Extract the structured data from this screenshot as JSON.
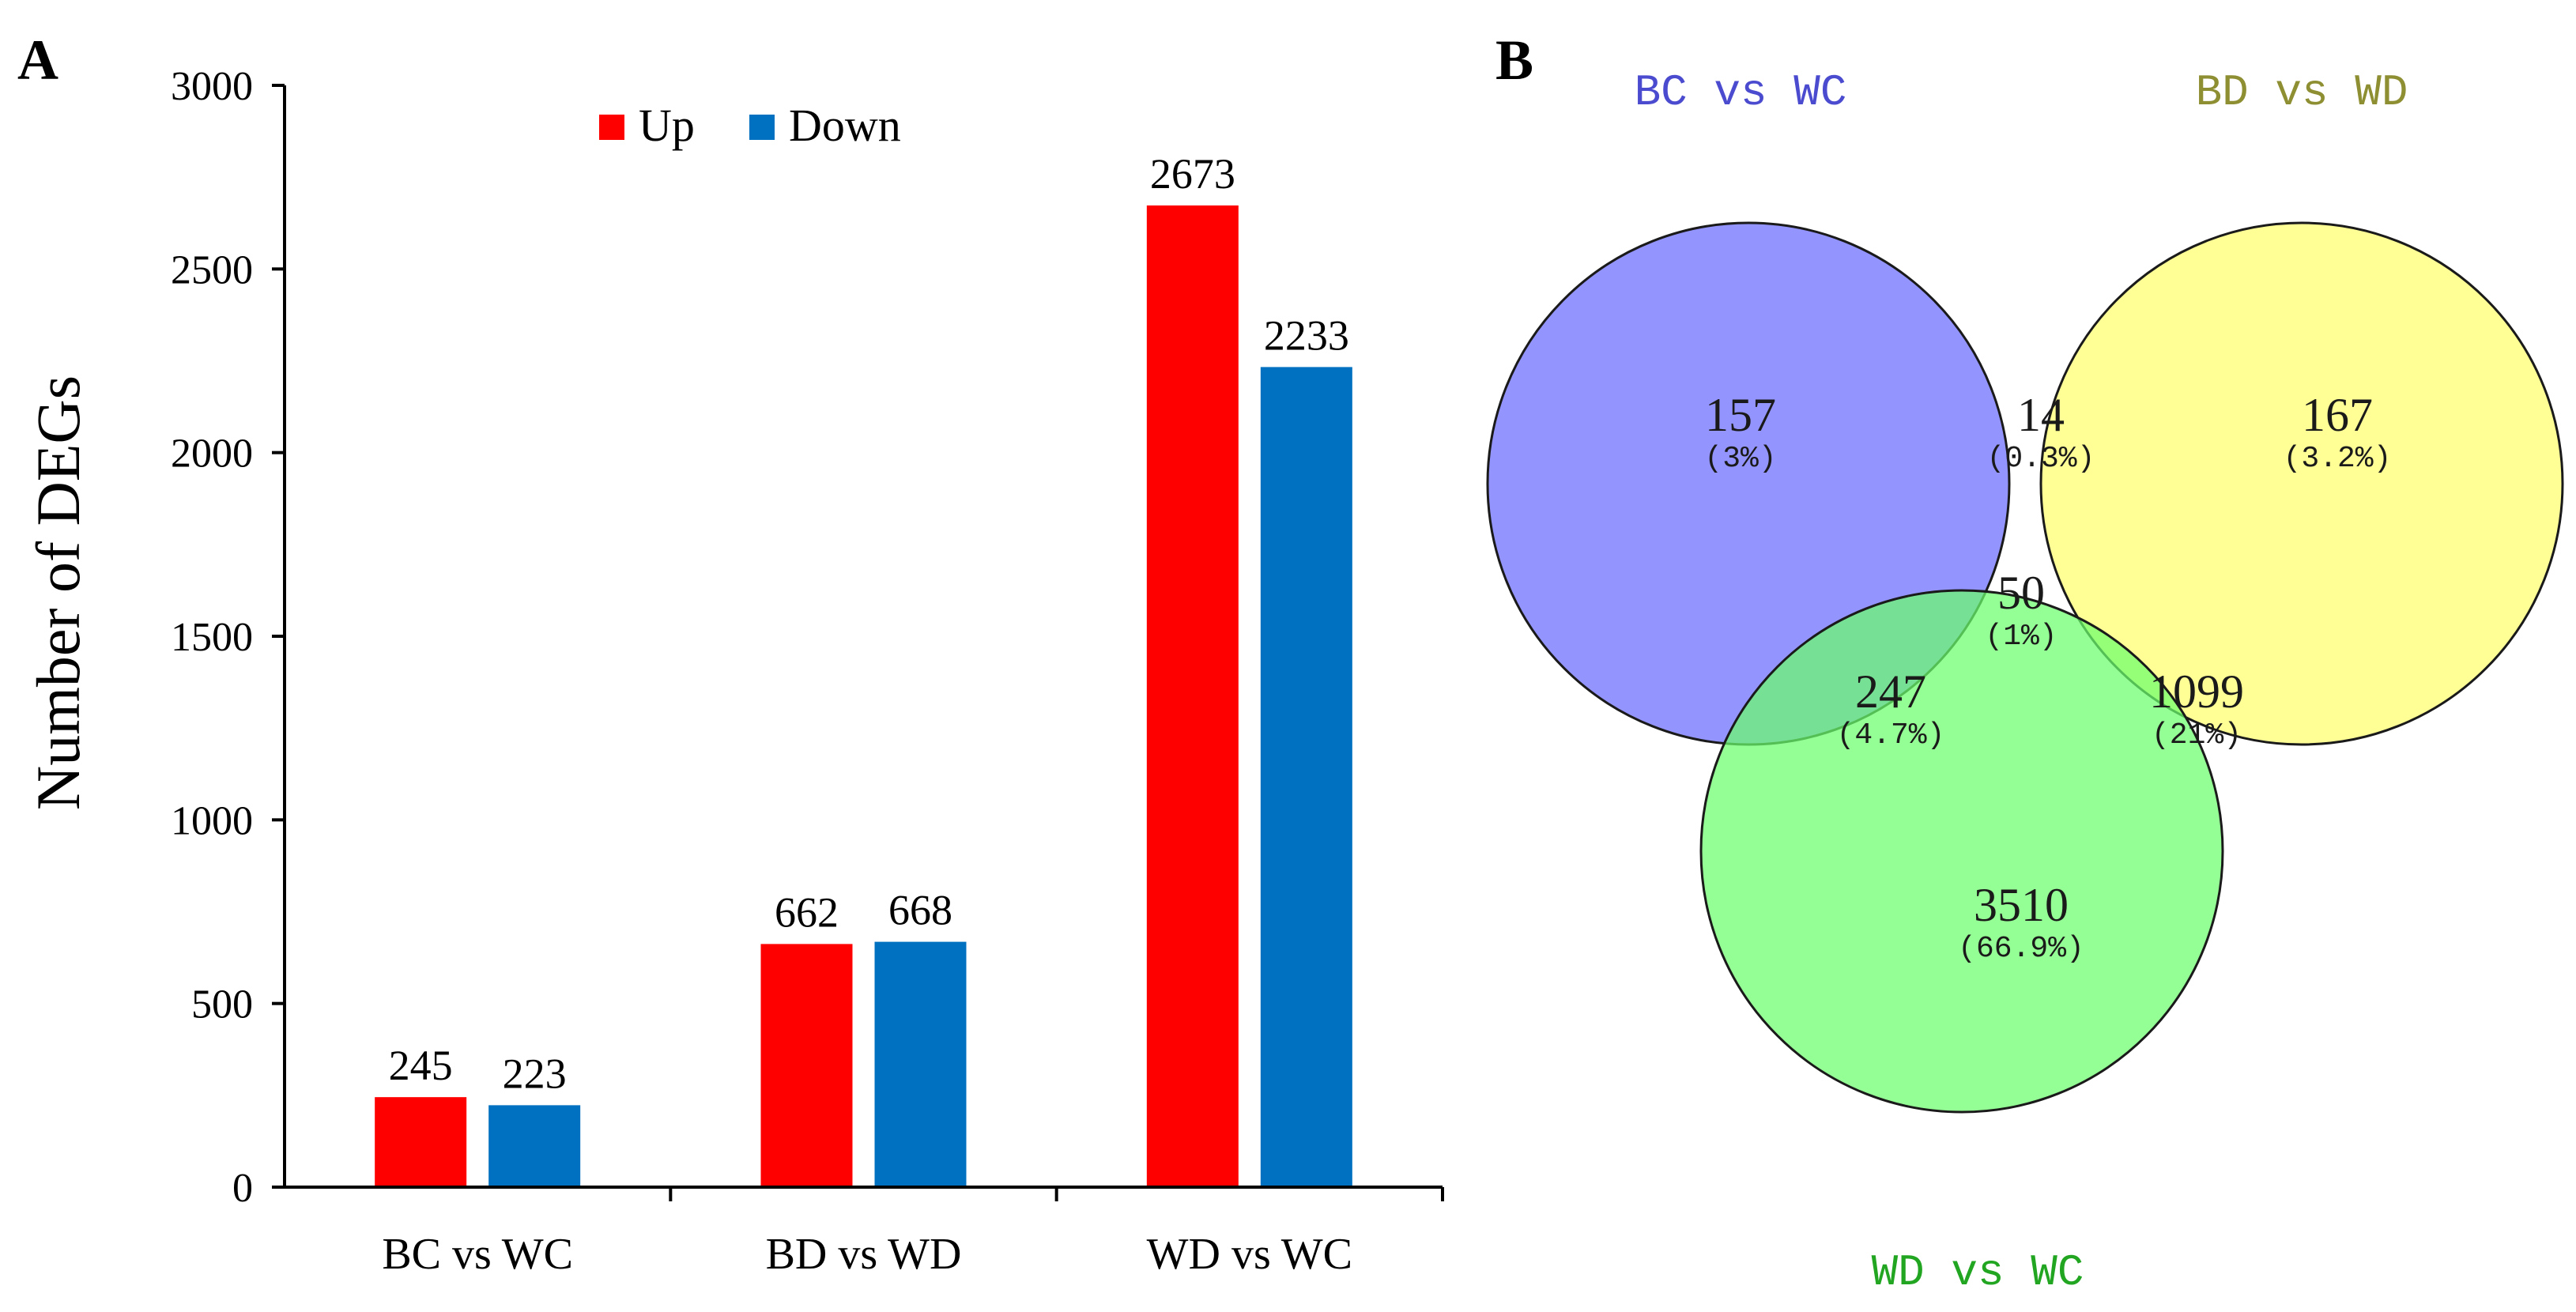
{
  "chart_data": [
    {
      "type": "bar",
      "panel_label": "A",
      "title": "",
      "xlabel": "",
      "ylabel": "Number of DEGs",
      "ylim": [
        0,
        3000
      ],
      "yticks": [
        0,
        500,
        1000,
        1500,
        2000,
        2500,
        3000
      ],
      "grid": false,
      "legend": "top-center",
      "categories": [
        "BC vs WC",
        "BD vs WD",
        "WD vs WC"
      ],
      "series": [
        {
          "name": "Up",
          "color": "#ff0000",
          "values": [
            245,
            662,
            2673
          ]
        },
        {
          "name": "Down",
          "color": "#0070c0",
          "values": [
            223,
            668,
            2233
          ]
        }
      ]
    },
    {
      "type": "venn",
      "panel_label": "B",
      "sets": [
        {
          "name": "BC vs WC",
          "color": "#6b6bff",
          "label_color": "#4b4bd0"
        },
        {
          "name": "BD vs WD",
          "color": "#ffff6e",
          "label_color": "#8e8e32"
        },
        {
          "name": "WD vs WC",
          "color": "#6bff6b",
          "label_color": "#22a622"
        }
      ],
      "regions": [
        {
          "sets": [
            "BC vs WC"
          ],
          "count": "157",
          "percent": "(3%)"
        },
        {
          "sets": [
            "BC vs WC",
            "BD vs WD"
          ],
          "count": "14",
          "percent": "(0.3%)"
        },
        {
          "sets": [
            "BD vs WD"
          ],
          "count": "167",
          "percent": "(3.2%)"
        },
        {
          "sets": [
            "BC vs WC",
            "BD vs WD",
            "WD vs WC"
          ],
          "count": "50",
          "percent": "(1%)"
        },
        {
          "sets": [
            "BC vs WC",
            "WD vs WC"
          ],
          "count": "247",
          "percent": "(4.7%)"
        },
        {
          "sets": [
            "BD vs WD",
            "WD vs WC"
          ],
          "count": "1099",
          "percent": "(21%)"
        },
        {
          "sets": [
            "WD vs WC"
          ],
          "count": "3510",
          "percent": "(66.9%)"
        }
      ]
    }
  ]
}
